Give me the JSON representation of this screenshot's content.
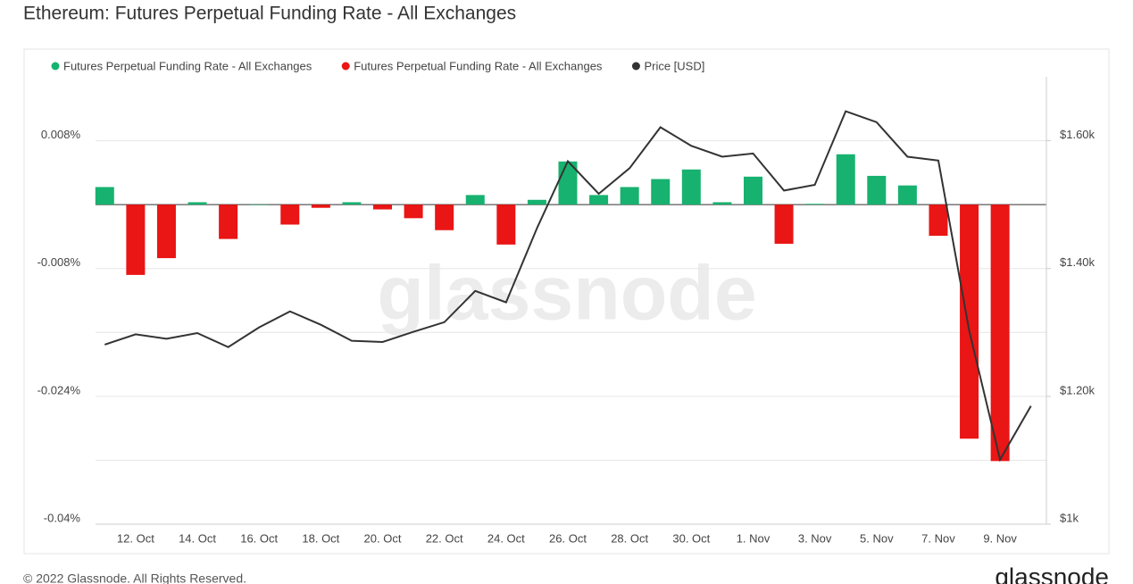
{
  "chart_data": {
    "type": "bar",
    "title": "Ethereum: Futures Perpetual Funding Rate - All Exchanges",
    "watermark": "glassnode",
    "footer": "© 2022 Glassnode. All Rights Reserved.",
    "logo": "glassnode",
    "categories": [
      null,
      "12. Oct",
      null,
      "14. Oct",
      null,
      "16. Oct",
      null,
      "18. Oct",
      null,
      "20. Oct",
      null,
      "22. Oct",
      null,
      "24. Oct",
      null,
      "26. Oct",
      null,
      "28. Oct",
      null,
      "30. Oct",
      null,
      "1. Nov",
      null,
      "3. Nov",
      null,
      "5. Nov",
      null,
      "7. Nov",
      null,
      "9. Nov",
      null
    ],
    "series": [
      {
        "name": "Futures Perpetual Funding Rate - All Exchanges",
        "color": "#17b26f",
        "values": [
          0.0022,
          null,
          null,
          0.0003,
          null,
          0,
          null,
          null,
          0.0003,
          null,
          null,
          null,
          0.0012,
          null,
          0.0006,
          0.0054,
          0.0012,
          0.0022,
          0.0032,
          0.0044,
          0.0003,
          0.0035,
          null,
          0.0001,
          0.0063,
          0.0036,
          0.0024,
          null,
          null,
          null,
          null
        ]
      },
      {
        "name": "Futures Perpetual Funding Rate - All Exchanges",
        "color": "#ea1515",
        "values": [
          null,
          -0.0088,
          -0.0067,
          null,
          -0.0043,
          null,
          -0.0025,
          -0.0004,
          null,
          -0.0006,
          -0.0017,
          -0.0032,
          null,
          -0.005,
          null,
          null,
          null,
          null,
          null,
          null,
          null,
          null,
          -0.0049,
          null,
          null,
          null,
          null,
          -0.0039,
          -0.0293,
          -0.0321,
          null
        ]
      },
      {
        "name": "Price [USD]",
        "color": "#333333",
        "type": "line",
        "axis": "y2",
        "values": [
          1281,
          1297,
          1290,
          1299,
          1277,
          1308,
          1333,
          1312,
          1287,
          1285,
          1301,
          1316,
          1365,
          1347,
          1463,
          1568,
          1517,
          1557,
          1621,
          1592,
          1575,
          1580,
          1522,
          1531,
          1646,
          1629,
          1575,
          1569,
          1303,
          1101,
          1185
        ]
      }
    ],
    "ylim": [
      -0.04,
      0.016
    ],
    "yticks": [
      {
        "value": 0.008,
        "label": "0.008%"
      },
      {
        "value": -0.008,
        "label": "-0.008%"
      },
      {
        "value": -0.024,
        "label": "-0.024%"
      },
      {
        "value": -0.04,
        "label": "-0.04%"
      }
    ],
    "ygrid": [
      0,
      -0.016,
      -0.032
    ],
    "y2lim": [
      1000,
      1700
    ],
    "y2ticks": [
      {
        "value": 1600,
        "label": "$1.60k"
      },
      {
        "value": 1400,
        "label": "$1.40k"
      },
      {
        "value": 1200,
        "label": "$1.20k"
      },
      {
        "value": 1000,
        "label": "$1k"
      }
    ],
    "grid": true
  }
}
